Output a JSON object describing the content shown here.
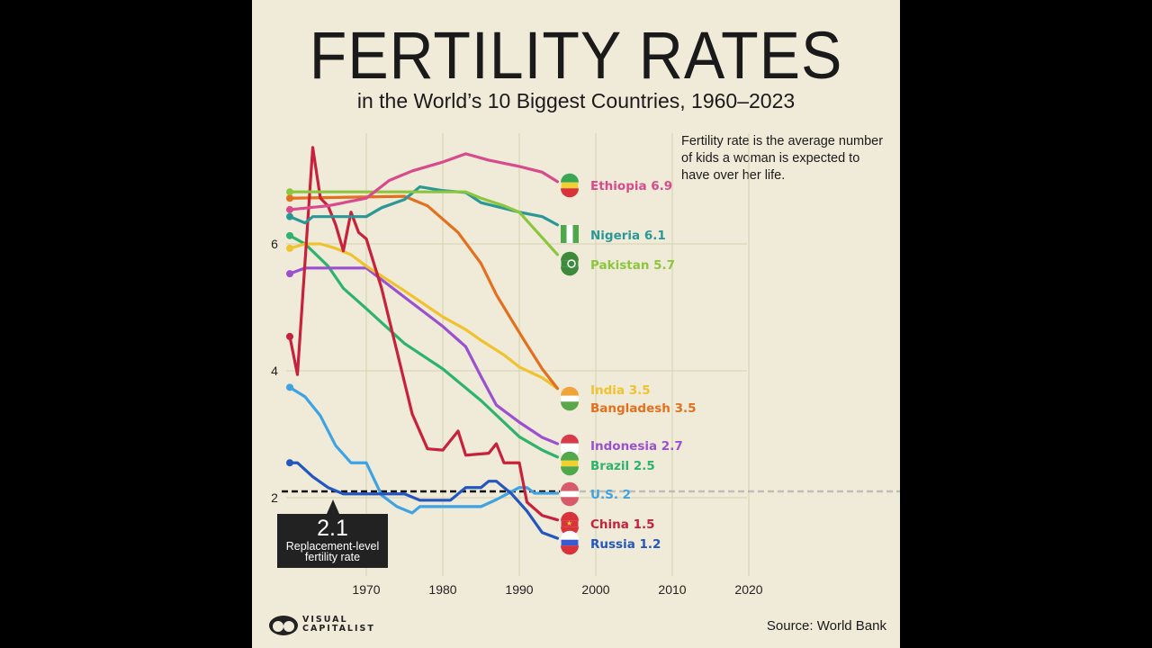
{
  "title": "FERTILITY RATES",
  "subtitle": "in the World’s 10 Biggest Countries, 1960–2023",
  "note": "Fertility rate is the average number of kids a woman is expected to have over her life.",
  "replacement": {
    "value_label": "2.1",
    "text_line1": "Replacement-level",
    "text_line2": "fertility rate",
    "value": 2.1
  },
  "source": "Source: World Bank",
  "logo": {
    "line1": "VISUAL",
    "line2": "CAPITALIST"
  },
  "chart_data": {
    "type": "line",
    "title": "FERTILITY RATES",
    "xlabel": "",
    "ylabel": "",
    "xlim": [
      1960,
      2023
    ],
    "ylim": [
      0,
      8
    ],
    "x_ticks": [
      1970,
      1980,
      1990,
      2000,
      2010,
      2020
    ],
    "y_ticks": [
      2,
      4,
      6
    ],
    "grid": true,
    "series": [
      {
        "name": "Ethiopia",
        "label": "Ethiopia 6.9",
        "color": "#d94a8c",
        "flag": "ethiopia-flag",
        "x": [
          1960,
          1965,
          1970,
          1973,
          1976,
          1980,
          1983,
          1986,
          1990,
          1993,
          1995
        ],
        "y": [
          6.54,
          6.6,
          6.72,
          7.0,
          7.15,
          7.29,
          7.42,
          7.32,
          7.22,
          7.13,
          6.98
        ]
      },
      {
        "name": "Nigeria",
        "label": "Nigeria 6.1",
        "color": "#2b9797",
        "flag": "nigeria-flag",
        "x": [
          1960,
          1962,
          1963,
          1970,
          1972,
          1975,
          1977,
          1980,
          1983,
          1985,
          1990,
          1993,
          1995
        ],
        "y": [
          6.43,
          6.33,
          6.43,
          6.43,
          6.57,
          6.7,
          6.9,
          6.84,
          6.81,
          6.65,
          6.5,
          6.43,
          6.3
        ]
      },
      {
        "name": "Pakistan",
        "label": "Pakistan 5.7",
        "color": "#8cc63f",
        "flag": "pakistan-flag",
        "x": [
          1960,
          1983,
          1985,
          1988,
          1990,
          1995
        ],
        "y": [
          6.82,
          6.82,
          6.72,
          6.6,
          6.5,
          5.83
        ]
      },
      {
        "name": "Bangladesh",
        "label": "Bangladesh 3.5",
        "color": "#e2701f",
        "flag": "",
        "x": [
          1960,
          1975,
          1978,
          1982,
          1985,
          1987,
          1989,
          1991,
          1993,
          1995
        ],
        "y": [
          6.72,
          6.75,
          6.6,
          6.18,
          5.69,
          5.2,
          4.8,
          4.41,
          4.03,
          3.72
        ]
      },
      {
        "name": "India",
        "label": "India 3.5",
        "color": "#f0c22f",
        "flag": "india-flag",
        "x": [
          1960,
          1962,
          1964,
          1966,
          1968,
          1970,
          1975,
          1980,
          1983,
          1985,
          1988,
          1990,
          1993,
          1995
        ],
        "y": [
          5.93,
          6.0,
          6.0,
          5.93,
          5.83,
          5.65,
          5.26,
          4.85,
          4.65,
          4.48,
          4.25,
          4.06,
          3.89,
          3.72
        ]
      },
      {
        "name": "Indonesia",
        "label": "Indonesia 2.7",
        "color": "#9b50cf",
        "flag": "indonesia-flag",
        "x": [
          1960,
          1962,
          1970,
          1975,
          1980,
          1983,
          1985,
          1987,
          1990,
          1993,
          1995
        ],
        "y": [
          5.53,
          5.62,
          5.62,
          5.16,
          4.7,
          4.38,
          3.91,
          3.46,
          3.19,
          2.95,
          2.85
        ]
      },
      {
        "name": "Brazil",
        "label": "Brazil 2.5",
        "color": "#2db36b",
        "flag": "brazil-flag",
        "x": [
          1960,
          1962,
          1965,
          1967,
          1970,
          1975,
          1980,
          1985,
          1990,
          1993,
          1995
        ],
        "y": [
          6.13,
          6.0,
          5.65,
          5.3,
          4.98,
          4.43,
          4.03,
          3.53,
          2.96,
          2.75,
          2.64
        ]
      },
      {
        "name": "U.S.",
        "label": "U.S. 2",
        "color": "#3fa2e2",
        "flag": "us-flag",
        "x": [
          1960,
          1962,
          1964,
          1966,
          1968,
          1970,
          1972,
          1974,
          1976,
          1977,
          1985,
          1987,
          1990,
          1991,
          1992,
          1995
        ],
        "y": [
          3.74,
          3.59,
          3.29,
          2.82,
          2.55,
          2.55,
          2.04,
          1.86,
          1.76,
          1.86,
          1.86,
          1.97,
          2.16,
          2.16,
          2.07,
          2.07
        ]
      },
      {
        "name": "China",
        "label": "China 1.5",
        "color": "#c8213b",
        "flag": "china-flag",
        "x": [
          1960,
          1961,
          1963,
          1964,
          1965,
          1966,
          1967,
          1968,
          1969,
          1970,
          1972,
          1974,
          1976,
          1978,
          1980,
          1982,
          1983,
          1986,
          1987,
          1988,
          1990,
          1991,
          1993,
          1995
        ],
        "y": [
          4.54,
          3.94,
          7.52,
          6.72,
          6.6,
          6.3,
          5.89,
          6.5,
          6.18,
          6.08,
          5.3,
          4.31,
          3.32,
          2.77,
          2.75,
          3.05,
          2.67,
          2.7,
          2.85,
          2.55,
          2.55,
          1.93,
          1.72,
          1.65
        ]
      },
      {
        "name": "Russia",
        "label": "Russia 1.2",
        "color": "#2356be",
        "flag": "russia-flag",
        "x": [
          1960,
          1961,
          1963,
          1965,
          1967,
          1975,
          1977,
          1981,
          1983,
          1985,
          1986,
          1987,
          1989,
          1991,
          1993,
          1995
        ],
        "y": [
          2.55,
          2.55,
          2.33,
          2.16,
          2.06,
          2.06,
          1.96,
          1.96,
          2.16,
          2.16,
          2.26,
          2.26,
          2.06,
          1.79,
          1.45,
          1.36
        ]
      }
    ]
  }
}
